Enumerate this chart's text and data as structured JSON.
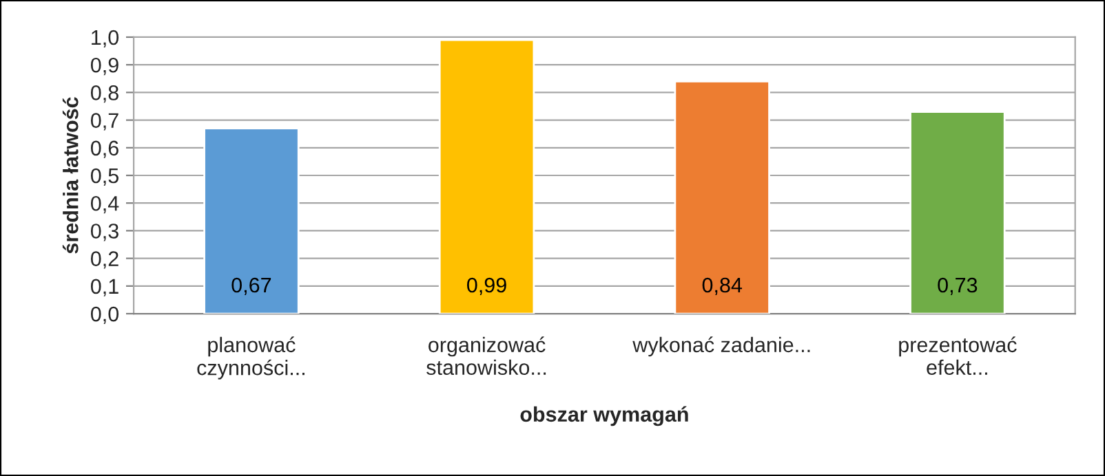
{
  "chart_data": {
    "type": "bar",
    "xlabel": "obszar wymagań",
    "ylabel": "średnia łatwość",
    "categories": [
      "planować\nczynności...",
      "organizować\nstanowisko...",
      "wykonać zadanie...",
      "prezentować\nefekt..."
    ],
    "values": [
      0.67,
      0.99,
      0.84,
      0.73
    ],
    "colors": [
      "#5b9bd5",
      "#ffc000",
      "#ed7d31",
      "#70ad47"
    ],
    "value_labels": [
      "0,67",
      "0,99",
      "0,84",
      "0,73"
    ],
    "ylim": [
      0,
      1.0
    ],
    "yticks": [
      {
        "value": 0,
        "label": "0,0"
      },
      {
        "value": 0.1,
        "label": "0,1"
      },
      {
        "value": 0.2,
        "label": "0,2"
      },
      {
        "value": 0.3,
        "label": "0,3"
      },
      {
        "value": 0.4,
        "label": "0,4"
      },
      {
        "value": 0.5,
        "label": "0,5"
      },
      {
        "value": 0.6,
        "label": "0,6"
      },
      {
        "value": 0.7,
        "label": "0,7"
      },
      {
        "value": 0.8,
        "label": "0,8"
      },
      {
        "value": 0.9,
        "label": "0,9"
      },
      {
        "value": 1.0,
        "label": "1,0"
      }
    ],
    "grid": "y"
  }
}
